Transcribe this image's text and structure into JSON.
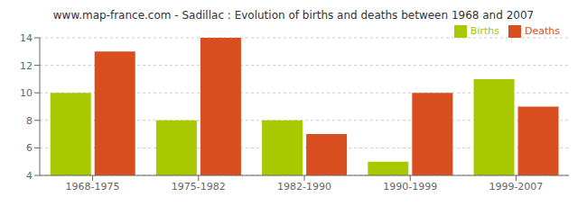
{
  "chart_data": {
    "type": "bar",
    "title": "www.map-france.com - Sadillac : Evolution of births and deaths between 1968 and 2007",
    "categories": [
      "1968-1975",
      "1975-1982",
      "1982-1990",
      "1990-1999",
      "1999-2007"
    ],
    "series": [
      {
        "name": "Births",
        "color": "#a8c800",
        "values": [
          10,
          8,
          8,
          5,
          11
        ]
      },
      {
        "name": "Deaths",
        "color": "#d94e1f",
        "values": [
          13,
          14,
          7,
          10,
          9
        ]
      }
    ],
    "ylim": [
      4,
      14
    ],
    "yticks": [
      4,
      6,
      8,
      10,
      12,
      14
    ],
    "grid": true,
    "legend": "upper right"
  }
}
